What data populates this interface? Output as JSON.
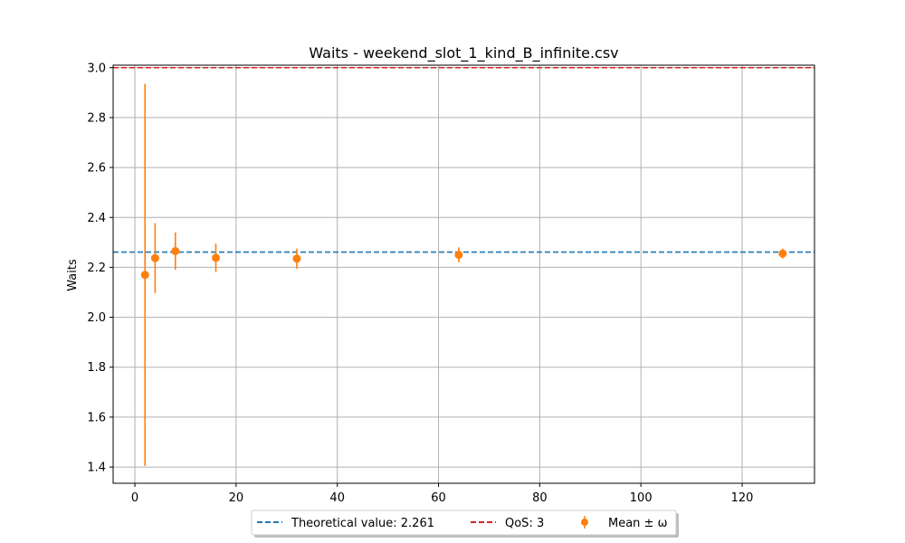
{
  "chart_data": {
    "type": "scatter",
    "title": "Waits - weekend_slot_1_kind_B_infinite.csv",
    "xlabel": "",
    "ylabel": "Waits",
    "xlim": [
      -4.3,
      134.3
    ],
    "ylim": [
      1.335,
      3.01
    ],
    "xticks": [
      0,
      20,
      40,
      60,
      80,
      100,
      120
    ],
    "yticks": [
      1.4,
      1.6,
      1.8,
      2.0,
      2.2,
      2.4,
      2.6,
      2.8,
      3.0
    ],
    "grid": true,
    "series": [
      {
        "name": "Mean ± ω",
        "kind": "errorbar",
        "color": "#ff7f0e",
        "x": [
          2,
          4,
          8,
          16,
          32,
          64,
          128
        ],
        "y": [
          2.17,
          2.237,
          2.265,
          2.238,
          2.235,
          2.25,
          2.255
        ],
        "err": [
          0.765,
          0.14,
          0.075,
          0.057,
          0.04,
          0.03,
          0.02
        ]
      }
    ],
    "hlines": [
      {
        "name": "Theoretical value: 2.261",
        "y": 2.261,
        "color": "#1f77b4",
        "style": "dashed"
      },
      {
        "name": "QoS: 3",
        "y": 3.0,
        "color": "#d62728",
        "style": "dashed"
      }
    ],
    "legend": {
      "placement": "bottom-center",
      "entries": [
        "Theoretical value: 2.261",
        "QoS: 3",
        "Mean ± ω"
      ]
    }
  }
}
